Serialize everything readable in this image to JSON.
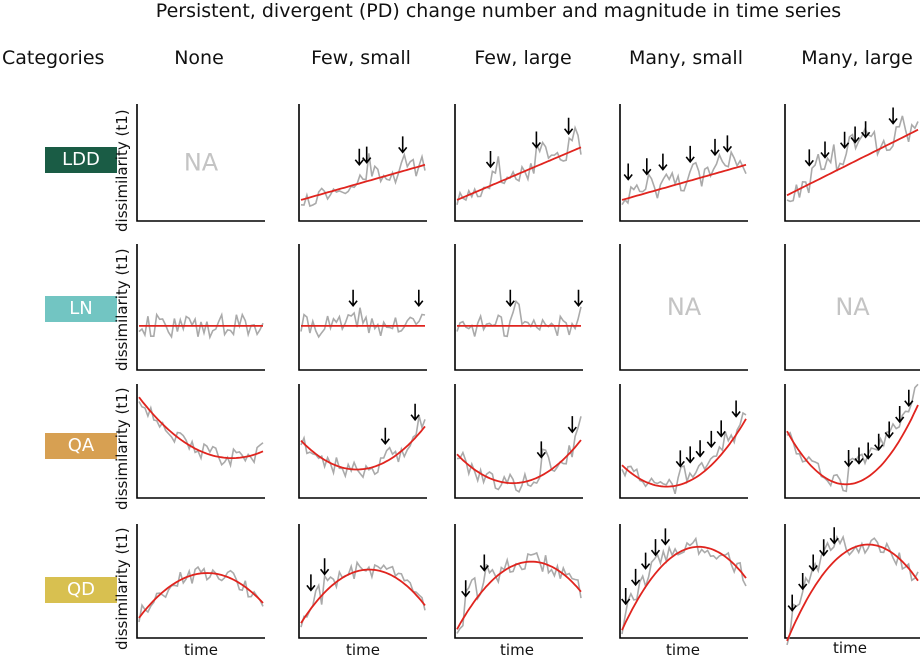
{
  "title": "Persistent, divergent (PD) change number and magnitude in time series",
  "categories_header": "Categories",
  "columns": [
    "None",
    "Few, small",
    "Few, large",
    "Many, small",
    "Many, large"
  ],
  "colors": {
    "LDD": "#1a5c45",
    "LN": "#72c5c2",
    "QA": "#d7a052",
    "QD": "#d8c050",
    "trend": "#e0241e",
    "series": "#aaaaaa",
    "na": "#c4c4c4"
  },
  "chart_data": {
    "type": "line",
    "title": "Persistent, divergent (PD) change number and magnitude in time series",
    "xlabel": "time",
    "ylabel": "dissimilarity (t1)",
    "rows": [
      {
        "category": "LDD",
        "trend": "linear, increasing",
        "panels": [
          {
            "column": "None",
            "na_label": "NA"
          },
          {
            "column": "Few, small",
            "change_points": [
              0.47,
              0.53,
              0.82
            ]
          },
          {
            "column": "Few, large",
            "change_points": [
              0.27,
              0.64,
              0.9
            ]
          },
          {
            "column": "Many, small",
            "change_points": [
              0.05,
              0.2,
              0.33,
              0.55,
              0.75,
              0.85
            ]
          },
          {
            "column": "Many, large",
            "change_points": [
              0.17,
              0.29,
              0.44,
              0.52,
              0.6,
              0.81
            ]
          }
        ]
      },
      {
        "category": "LN",
        "trend": "flat, no change",
        "panels": [
          {
            "column": "None"
          },
          {
            "column": "Few, small",
            "change_points": [
              0.42,
              0.95
            ]
          },
          {
            "column": "Few, large",
            "change_points": [
              0.43,
              0.98
            ]
          },
          {
            "column": "Many, small",
            "na_label": "NA"
          },
          {
            "column": "Many, large",
            "na_label": "NA"
          }
        ]
      },
      {
        "category": "QA",
        "trend": "quadratic, ascending (U-shaped)",
        "panels": [
          {
            "column": "None"
          },
          {
            "column": "Few, small",
            "change_points": [
              0.68,
              0.92
            ]
          },
          {
            "column": "Few, large",
            "change_points": [
              0.68,
              0.93
            ]
          },
          {
            "column": "Many, small",
            "change_points": [
              0.47,
              0.55,
              0.63,
              0.72,
              0.8,
              0.92
            ]
          },
          {
            "column": "Many, large",
            "change_points": [
              0.47,
              0.55,
              0.62,
              0.7,
              0.78,
              0.86,
              0.93
            ]
          }
        ]
      },
      {
        "category": "QD",
        "trend": "quadratic, descending (hump-shaped)",
        "panels": [
          {
            "column": "None"
          },
          {
            "column": "Few, small",
            "change_points": [
              0.08,
              0.19
            ]
          },
          {
            "column": "Few, large",
            "change_points": [
              0.07,
              0.22
            ]
          },
          {
            "column": "Many, small",
            "change_points": [
              0.03,
              0.11,
              0.19,
              0.27,
              0.35
            ]
          },
          {
            "column": "Many, large",
            "change_points": [
              0.04,
              0.12,
              0.2,
              0.28,
              0.36
            ]
          }
        ]
      }
    ]
  }
}
